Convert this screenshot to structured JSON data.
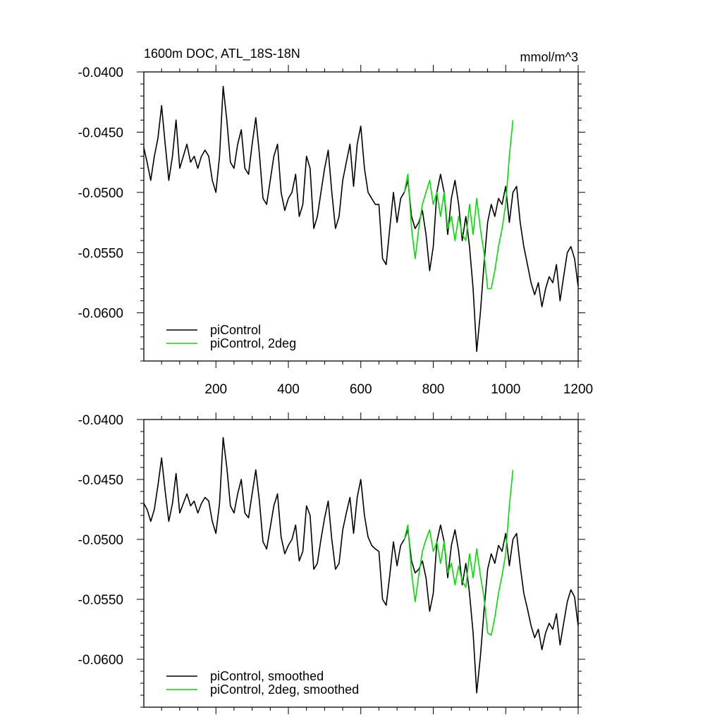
{
  "figure": {
    "title": "1600m DOC, ATL_18S-18N",
    "units": "mmol/m^3"
  },
  "chart_data": [
    {
      "type": "line",
      "title": "1600m DOC, ATL_18S-18N",
      "units_label": "mmol/m^3",
      "xlim": [
        1,
        1200
      ],
      "ylim": [
        -0.064,
        -0.04
      ],
      "xticks": [
        200,
        400,
        600,
        800,
        1000,
        1200
      ],
      "xtick_labels": [
        "200",
        "400",
        "600",
        "800",
        "1000",
        "1200"
      ],
      "yticks": [
        -0.04,
        -0.045,
        -0.05,
        -0.055,
        -0.06
      ],
      "ytick_labels": [
        "-0.0400",
        "-0.0450",
        "-0.0500",
        "-0.0550",
        "-0.0600"
      ],
      "legend_position": "bottom-left",
      "grid": false,
      "series": [
        {
          "name": "piControl",
          "color": "#000000",
          "x": [
            1,
            10,
            20,
            30,
            40,
            50,
            60,
            70,
            80,
            90,
            100,
            110,
            120,
            130,
            140,
            150,
            160,
            170,
            180,
            190,
            200,
            210,
            220,
            230,
            240,
            250,
            260,
            270,
            280,
            290,
            300,
            310,
            320,
            330,
            340,
            350,
            360,
            370,
            380,
            390,
            400,
            410,
            420,
            430,
            440,
            450,
            460,
            470,
            480,
            490,
            500,
            510,
            520,
            530,
            540,
            550,
            560,
            570,
            580,
            590,
            600,
            610,
            620,
            630,
            640,
            650,
            660,
            670,
            680,
            690,
            700,
            710,
            720,
            730,
            740,
            750,
            760,
            770,
            780,
            790,
            800,
            810,
            820,
            830,
            840,
            850,
            860,
            870,
            880,
            890,
            900,
            910,
            920,
            930,
            940,
            950,
            960,
            970,
            980,
            990,
            1000,
            1010,
            1020,
            1030,
            1040,
            1050,
            1060,
            1070,
            1080,
            1090,
            1100,
            1110,
            1120,
            1130,
            1140,
            1150,
            1160,
            1170,
            1180,
            1190,
            1200
          ],
          "values": [
            -0.0463,
            -0.0475,
            -0.049,
            -0.047,
            -0.0455,
            -0.0428,
            -0.046,
            -0.049,
            -0.047,
            -0.044,
            -0.048,
            -0.047,
            -0.046,
            -0.0475,
            -0.047,
            -0.048,
            -0.047,
            -0.0465,
            -0.047,
            -0.049,
            -0.05,
            -0.047,
            -0.0412,
            -0.044,
            -0.0475,
            -0.048,
            -0.046,
            -0.0448,
            -0.048,
            -0.0485,
            -0.046,
            -0.0438,
            -0.0468,
            -0.0505,
            -0.051,
            -0.049,
            -0.047,
            -0.046,
            -0.05,
            -0.0515,
            -0.0505,
            -0.05,
            -0.0485,
            -0.052,
            -0.051,
            -0.047,
            -0.048,
            -0.053,
            -0.052,
            -0.05,
            -0.048,
            -0.0465,
            -0.05,
            -0.053,
            -0.052,
            -0.049,
            -0.0475,
            -0.046,
            -0.0495,
            -0.046,
            -0.0445,
            -0.048,
            -0.05,
            -0.0505,
            -0.051,
            -0.051,
            -0.0555,
            -0.056,
            -0.053,
            -0.05,
            -0.0525,
            -0.0505,
            -0.05,
            -0.049,
            -0.052,
            -0.053,
            -0.0525,
            -0.0515,
            -0.0535,
            -0.0565,
            -0.0545,
            -0.05,
            -0.0485,
            -0.05,
            -0.0535,
            -0.0505,
            -0.049,
            -0.051,
            -0.054,
            -0.052,
            -0.0545,
            -0.058,
            -0.0632,
            -0.06,
            -0.056,
            -0.0525,
            -0.051,
            -0.052,
            -0.0505,
            -0.051,
            -0.0495,
            -0.0525,
            -0.05,
            -0.0495,
            -0.0525,
            -0.0545,
            -0.056,
            -0.0575,
            -0.0585,
            -0.0575,
            -0.0595,
            -0.058,
            -0.057,
            -0.0575,
            -0.056,
            -0.059,
            -0.057,
            -0.055,
            -0.0545,
            -0.0555,
            -0.0578
          ]
        },
        {
          "name": "piControl, 2deg",
          "color": "#00e000",
          "x": [
            720,
            730,
            740,
            750,
            760,
            770,
            780,
            790,
            800,
            810,
            820,
            830,
            840,
            850,
            860,
            870,
            880,
            890,
            900,
            910,
            920,
            930,
            940,
            950,
            960,
            970,
            980,
            990,
            1000,
            1010,
            1020
          ],
          "values": [
            -0.05,
            -0.0485,
            -0.053,
            -0.0555,
            -0.053,
            -0.051,
            -0.05,
            -0.049,
            -0.051,
            -0.05,
            -0.052,
            -0.05,
            -0.053,
            -0.052,
            -0.054,
            -0.052,
            -0.0535,
            -0.054,
            -0.051,
            -0.0535,
            -0.0505,
            -0.053,
            -0.055,
            -0.058,
            -0.058,
            -0.0565,
            -0.0545,
            -0.053,
            -0.051,
            -0.047,
            -0.044
          ]
        }
      ]
    },
    {
      "type": "line",
      "xlim": [
        1,
        1200
      ],
      "ylim": [
        -0.064,
        -0.04
      ],
      "xticks": [
        200,
        400,
        600,
        800,
        1000,
        1200
      ],
      "yticks": [
        -0.04,
        -0.045,
        -0.05,
        -0.055,
        -0.06
      ],
      "ytick_labels": [
        "-0.0400",
        "-0.0450",
        "-0.0500",
        "-0.0550",
        "-0.0600"
      ],
      "legend_position": "bottom-left",
      "grid": false,
      "series": [
        {
          "name": "piControl, smoothed",
          "color": "#000000",
          "x": [
            1,
            10,
            20,
            30,
            40,
            50,
            60,
            70,
            80,
            90,
            100,
            110,
            120,
            130,
            140,
            150,
            160,
            170,
            180,
            190,
            200,
            210,
            220,
            230,
            240,
            250,
            260,
            270,
            280,
            290,
            300,
            310,
            320,
            330,
            340,
            350,
            360,
            370,
            380,
            390,
            400,
            410,
            420,
            430,
            440,
            450,
            460,
            470,
            480,
            490,
            500,
            510,
            520,
            530,
            540,
            550,
            560,
            570,
            580,
            590,
            600,
            610,
            620,
            630,
            640,
            650,
            660,
            670,
            680,
            690,
            700,
            710,
            720,
            730,
            740,
            750,
            760,
            770,
            780,
            790,
            800,
            810,
            820,
            830,
            840,
            850,
            860,
            870,
            880,
            890,
            900,
            910,
            920,
            930,
            940,
            950,
            960,
            970,
            980,
            990,
            1000,
            1010,
            1020,
            1030,
            1040,
            1050,
            1060,
            1070,
            1080,
            1090,
            1100,
            1110,
            1120,
            1130,
            1140,
            1150,
            1160,
            1170,
            1180,
            1190,
            1200
          ],
          "values": [
            -0.047,
            -0.0475,
            -0.0485,
            -0.0475,
            -0.0455,
            -0.0432,
            -0.046,
            -0.0485,
            -0.047,
            -0.0445,
            -0.0478,
            -0.047,
            -0.0462,
            -0.0472,
            -0.0468,
            -0.0478,
            -0.047,
            -0.0465,
            -0.0468,
            -0.0485,
            -0.0495,
            -0.047,
            -0.0415,
            -0.044,
            -0.0472,
            -0.0478,
            -0.0462,
            -0.045,
            -0.0478,
            -0.0482,
            -0.0462,
            -0.0442,
            -0.0468,
            -0.0502,
            -0.0508,
            -0.049,
            -0.0472,
            -0.0462,
            -0.0498,
            -0.0512,
            -0.0505,
            -0.05,
            -0.0488,
            -0.0518,
            -0.051,
            -0.0472,
            -0.048,
            -0.0525,
            -0.052,
            -0.05,
            -0.0482,
            -0.0468,
            -0.05,
            -0.0525,
            -0.052,
            -0.0492,
            -0.0478,
            -0.0465,
            -0.0495,
            -0.0465,
            -0.045,
            -0.048,
            -0.0498,
            -0.0505,
            -0.0508,
            -0.051,
            -0.055,
            -0.0555,
            -0.053,
            -0.0502,
            -0.0522,
            -0.0505,
            -0.05,
            -0.0492,
            -0.0518,
            -0.0528,
            -0.0525,
            -0.0518,
            -0.0532,
            -0.056,
            -0.0545,
            -0.0502,
            -0.0488,
            -0.0502,
            -0.0532,
            -0.0505,
            -0.0492,
            -0.051,
            -0.0538,
            -0.052,
            -0.0545,
            -0.0578,
            -0.0628,
            -0.0598,
            -0.056,
            -0.0525,
            -0.0512,
            -0.052,
            -0.0505,
            -0.051,
            -0.0495,
            -0.0522,
            -0.05,
            -0.0495,
            -0.0522,
            -0.0545,
            -0.0558,
            -0.0572,
            -0.0582,
            -0.0575,
            -0.0592,
            -0.0578,
            -0.057,
            -0.0575,
            -0.0562,
            -0.0588,
            -0.057,
            -0.0552,
            -0.0542,
            -0.0548,
            -0.0572
          ]
        },
        {
          "name": "piControl, 2deg, smoothed",
          "color": "#00e000",
          "x": [
            720,
            730,
            740,
            750,
            760,
            770,
            780,
            790,
            800,
            810,
            820,
            830,
            840,
            850,
            860,
            870,
            880,
            890,
            900,
            910,
            920,
            930,
            940,
            950,
            960,
            970,
            980,
            990,
            1000,
            1010,
            1020
          ],
          "values": [
            -0.05,
            -0.0488,
            -0.0528,
            -0.0552,
            -0.053,
            -0.051,
            -0.05,
            -0.0492,
            -0.051,
            -0.0502,
            -0.052,
            -0.0502,
            -0.0528,
            -0.052,
            -0.0538,
            -0.0522,
            -0.0535,
            -0.054,
            -0.0512,
            -0.0532,
            -0.0508,
            -0.053,
            -0.0548,
            -0.0578,
            -0.058,
            -0.0565,
            -0.0545,
            -0.053,
            -0.0512,
            -0.0472,
            -0.0442
          ]
        }
      ]
    }
  ]
}
